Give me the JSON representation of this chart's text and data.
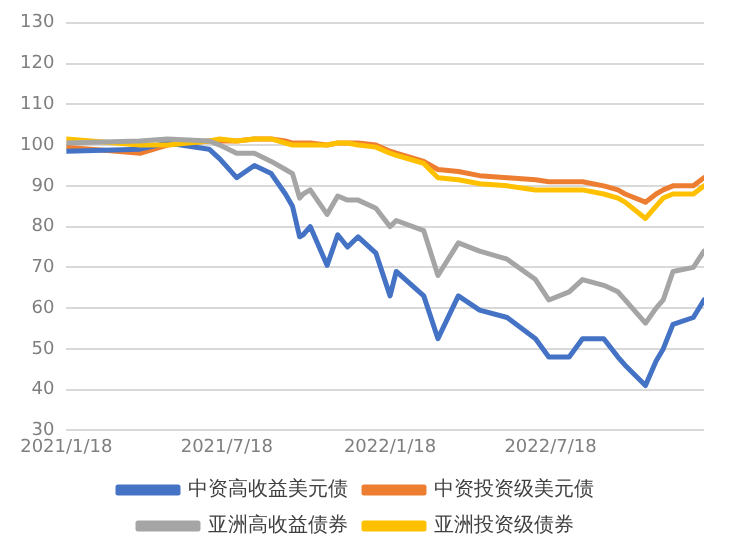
{
  "chart_data": {
    "type": "line",
    "x": [
      "2021-01-18",
      "2021-04-11",
      "2021-05-12",
      "2021-06-28",
      "2021-07-10",
      "2021-07-29",
      "2021-08-18",
      "2021-09-06",
      "2021-09-22",
      "2021-09-30",
      "2021-10-08",
      "2021-10-12",
      "2021-10-20",
      "2021-11-08",
      "2021-11-20",
      "2021-12-01",
      "2021-12-13",
      "2022-01-02",
      "2022-01-18",
      "2022-01-25",
      "2022-02-25",
      "2022-03-13",
      "2022-04-05",
      "2022-04-29",
      "2022-05-30",
      "2022-07-01",
      "2022-07-16",
      "2022-08-08",
      "2022-08-23",
      "2022-09-16",
      "2022-10-02",
      "2022-10-10",
      "2022-11-02",
      "2022-11-14",
      "2022-11-22",
      "2022-12-03",
      "2022-12-26",
      "2023-01-07"
    ],
    "series": [
      {
        "name": "中资高收益美元债",
        "color": "#4472c4",
        "values": [
          98.5,
          99,
          100.5,
          99,
          96.6,
          92,
          95,
          93,
          88,
          85,
          77.5,
          78,
          80,
          70.5,
          78,
          75,
          77.5,
          73.5,
          63,
          69,
          63,
          52.5,
          63,
          59.5,
          57.7,
          52.5,
          48,
          48,
          52.5,
          52.5,
          48,
          46,
          41,
          47,
          50,
          56,
          57.7,
          62
        ]
      },
      {
        "name": "中资投资级美元债",
        "color": "#ed7d31",
        "values": [
          99.5,
          98,
          100,
          101,
          101,
          101,
          101.5,
          101.5,
          101,
          100.5,
          100.5,
          100.5,
          100.5,
          100,
          100.5,
          100.5,
          100.5,
          100,
          98.5,
          98,
          96,
          94,
          93.5,
          92.5,
          92,
          91.5,
          91,
          91,
          91,
          90,
          89,
          88,
          86,
          88,
          89,
          90,
          90,
          92
        ]
      },
      {
        "name": "亚洲高收益债券",
        "color": "#a5a5a5",
        "values": [
          100.5,
          101,
          101.5,
          101,
          100,
          98,
          98,
          96,
          94,
          93,
          87,
          88,
          89,
          83,
          87.5,
          86.5,
          86.5,
          84.5,
          80,
          81.5,
          79,
          68,
          76,
          74,
          72,
          67,
          62,
          64,
          67,
          65.6,
          64,
          62,
          56.3,
          60,
          62,
          69,
          70,
          74
        ]
      },
      {
        "name": "亚洲投资级债券",
        "color": "#ffc000",
        "values": [
          101.5,
          100,
          100,
          101,
          101.5,
          101,
          101.5,
          101.5,
          100.5,
          100,
          100,
          100,
          100,
          100,
          100.5,
          100.5,
          100,
          99.5,
          98,
          97.5,
          95.5,
          92,
          91.5,
          90.5,
          90,
          89,
          89,
          89,
          89,
          88,
          87,
          86,
          82,
          85,
          87,
          88,
          88,
          90
        ]
      }
    ],
    "xlim": [
      "2021-01-18",
      "2023-01-07"
    ],
    "xticks": [
      {
        "value": "2021-01-18",
        "label": "2021/1/18"
      },
      {
        "value": "2021-07-18",
        "label": "2021/7/18"
      },
      {
        "value": "2022-01-18",
        "label": "2022/1/18"
      },
      {
        "value": "2022-07-18",
        "label": "2022/7/18"
      }
    ],
    "ylim": [
      30,
      130
    ],
    "yticks": [
      30,
      40,
      50,
      60,
      70,
      80,
      90,
      100,
      110,
      120,
      130
    ],
    "grid": "y",
    "legend": "bottom",
    "marker": "none",
    "line_style": "solid"
  }
}
